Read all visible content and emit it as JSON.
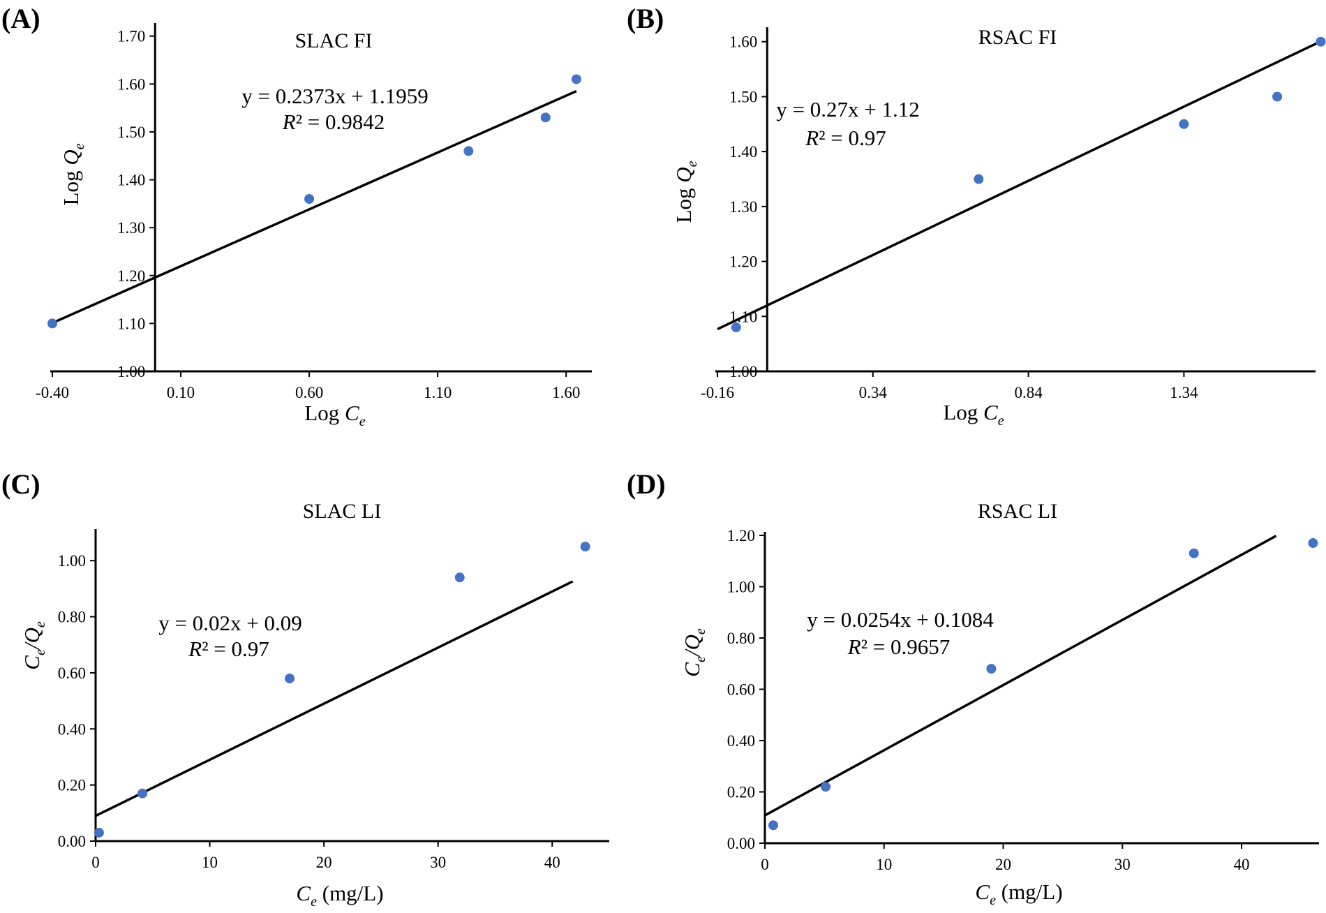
{
  "colors": {
    "point": "#4472C4",
    "line": "#000000",
    "background": "#ffffff"
  },
  "chart_data": [
    {
      "panel": "(A)",
      "type": "scatter",
      "title": "SLAC FI",
      "xlabel_main": "Log ",
      "xlabel_var": "C",
      "xlabel_sub": "e",
      "xlabel_tail": "",
      "ylabel_main": "Log ",
      "ylabel_var": "Q",
      "ylabel_sub": "e",
      "xlim": [
        -0.4,
        1.7
      ],
      "ylim": [
        1.0,
        1.72
      ],
      "xticks": [
        -0.4,
        0.1,
        0.6,
        1.1,
        1.6
      ],
      "xtick_labels": [
        "-0.40",
        "0.10",
        "0.60",
        "1.10",
        "1.60"
      ],
      "yticks": [
        1.0,
        1.1,
        1.2,
        1.3,
        1.4,
        1.5,
        1.6,
        1.7
      ],
      "ytick_labels": [
        "1.00",
        "1.10",
        "1.20",
        "1.30",
        "1.40",
        "1.50",
        "1.60",
        "1.70"
      ],
      "y_axis_at_x": 0,
      "points": {
        "x": [
          -0.4,
          0.6,
          1.22,
          1.52,
          1.64
        ],
        "y": [
          1.1,
          1.36,
          1.46,
          1.53,
          1.61
        ]
      },
      "fit": {
        "slope": 0.2373,
        "intercept": 1.1959,
        "x_range": [
          -0.4,
          1.64
        ]
      },
      "equation": "y = 0.2373x + 1.1959",
      "r2_var": "R",
      "r2_text": "² = 0.9842"
    },
    {
      "panel": "(B)",
      "type": "scatter",
      "title": "RSAC FI",
      "xlabel_main": "Log ",
      "xlabel_var": "C",
      "xlabel_sub": "e",
      "xlabel_tail": "",
      "ylabel_main": "Log ",
      "ylabel_var": "Q",
      "ylabel_sub": "e",
      "xlim": [
        -0.16,
        1.77
      ],
      "ylim": [
        1.0,
        1.62
      ],
      "xticks": [
        -0.16,
        0.34,
        0.84,
        1.34
      ],
      "xtick_labels": [
        "-0.16",
        "0.34",
        "0.84",
        "1.34"
      ],
      "yticks": [
        1.0,
        1.1,
        1.2,
        1.3,
        1.4,
        1.5,
        1.6
      ],
      "ytick_labels": [
        "1.00",
        "1.10",
        "1.20",
        "1.30",
        "1.40",
        "1.50",
        "1.60"
      ],
      "y_axis_at_x": 0,
      "points": {
        "x": [
          -0.1,
          0.68,
          1.34,
          1.64,
          1.78
        ],
        "y": [
          1.08,
          1.35,
          1.45,
          1.5,
          1.6
        ]
      },
      "fit": {
        "slope": 0.27,
        "intercept": 1.12,
        "x_range": [
          -0.16,
          1.77
        ]
      },
      "equation": "y = 0.27x + 1.12",
      "r2_var": "R",
      "r2_text": "² = 0.97"
    },
    {
      "panel": "(C)",
      "type": "scatter",
      "title": "SLAC LI",
      "xlabel_main": "",
      "xlabel_var": "C",
      "xlabel_sub": "e",
      "xlabel_tail": " (mg/L)",
      "ylabel_main": "",
      "ylabel_var": "C",
      "ylabel_sub": "e",
      "ylabel_tail_var": "/Q",
      "ylabel_tail_sub": "e",
      "xlim": [
        0,
        45
      ],
      "ylim": [
        0,
        1.1
      ],
      "xticks": [
        0,
        10,
        20,
        30,
        40
      ],
      "xtick_labels": [
        "0",
        "10",
        "20",
        "30",
        "40"
      ],
      "yticks": [
        0,
        0.2,
        0.4,
        0.6,
        0.8,
        1.0
      ],
      "ytick_labels": [
        "0.00",
        "0.20",
        "0.40",
        "0.60",
        "0.80",
        "1.00"
      ],
      "y_axis_at_x": 0,
      "points": {
        "x": [
          0.3,
          4.1,
          17.0,
          31.9,
          42.9
        ],
        "y": [
          0.03,
          0.17,
          0.58,
          0.94,
          1.05
        ]
      },
      "fit": {
        "slope": 0.02,
        "intercept": 0.09,
        "x_range": [
          0,
          41.8
        ]
      },
      "equation": "y = 0.02x + 0.09",
      "r2_var": "R",
      "r2_text": "² = 0.97"
    },
    {
      "panel": "(D)",
      "type": "scatter",
      "title": "RSAC LI",
      "xlabel_main": "",
      "xlabel_var": "C",
      "xlabel_sub": "e",
      "xlabel_tail": " (mg/L)",
      "ylabel_main": "",
      "ylabel_var": "C",
      "ylabel_sub": "e",
      "ylabel_tail_var": "/Q",
      "ylabel_tail_sub": "e",
      "xlim": [
        0,
        46.5
      ],
      "ylim": [
        0,
        1.2
      ],
      "xticks": [
        0,
        10,
        20,
        30,
        40
      ],
      "xtick_labels": [
        "0",
        "10",
        "20",
        "30",
        "40"
      ],
      "yticks": [
        0,
        0.2,
        0.4,
        0.6,
        0.8,
        1.0,
        1.2
      ],
      "ytick_labels": [
        "0.00",
        "0.20",
        "0.40",
        "0.60",
        "0.80",
        "1.00",
        "1.20"
      ],
      "y_axis_at_x": 0,
      "points": {
        "x": [
          0.7,
          5.1,
          19.0,
          36.0,
          46.0
        ],
        "y": [
          0.07,
          0.22,
          0.68,
          1.13,
          1.17
        ]
      },
      "fit": {
        "slope": 0.0254,
        "intercept": 0.1084,
        "x_range": [
          0,
          42.9
        ]
      },
      "equation": "y = 0.0254x + 0.1084",
      "r2_var": "R",
      "r2_text": "² = 0.9657"
    }
  ]
}
